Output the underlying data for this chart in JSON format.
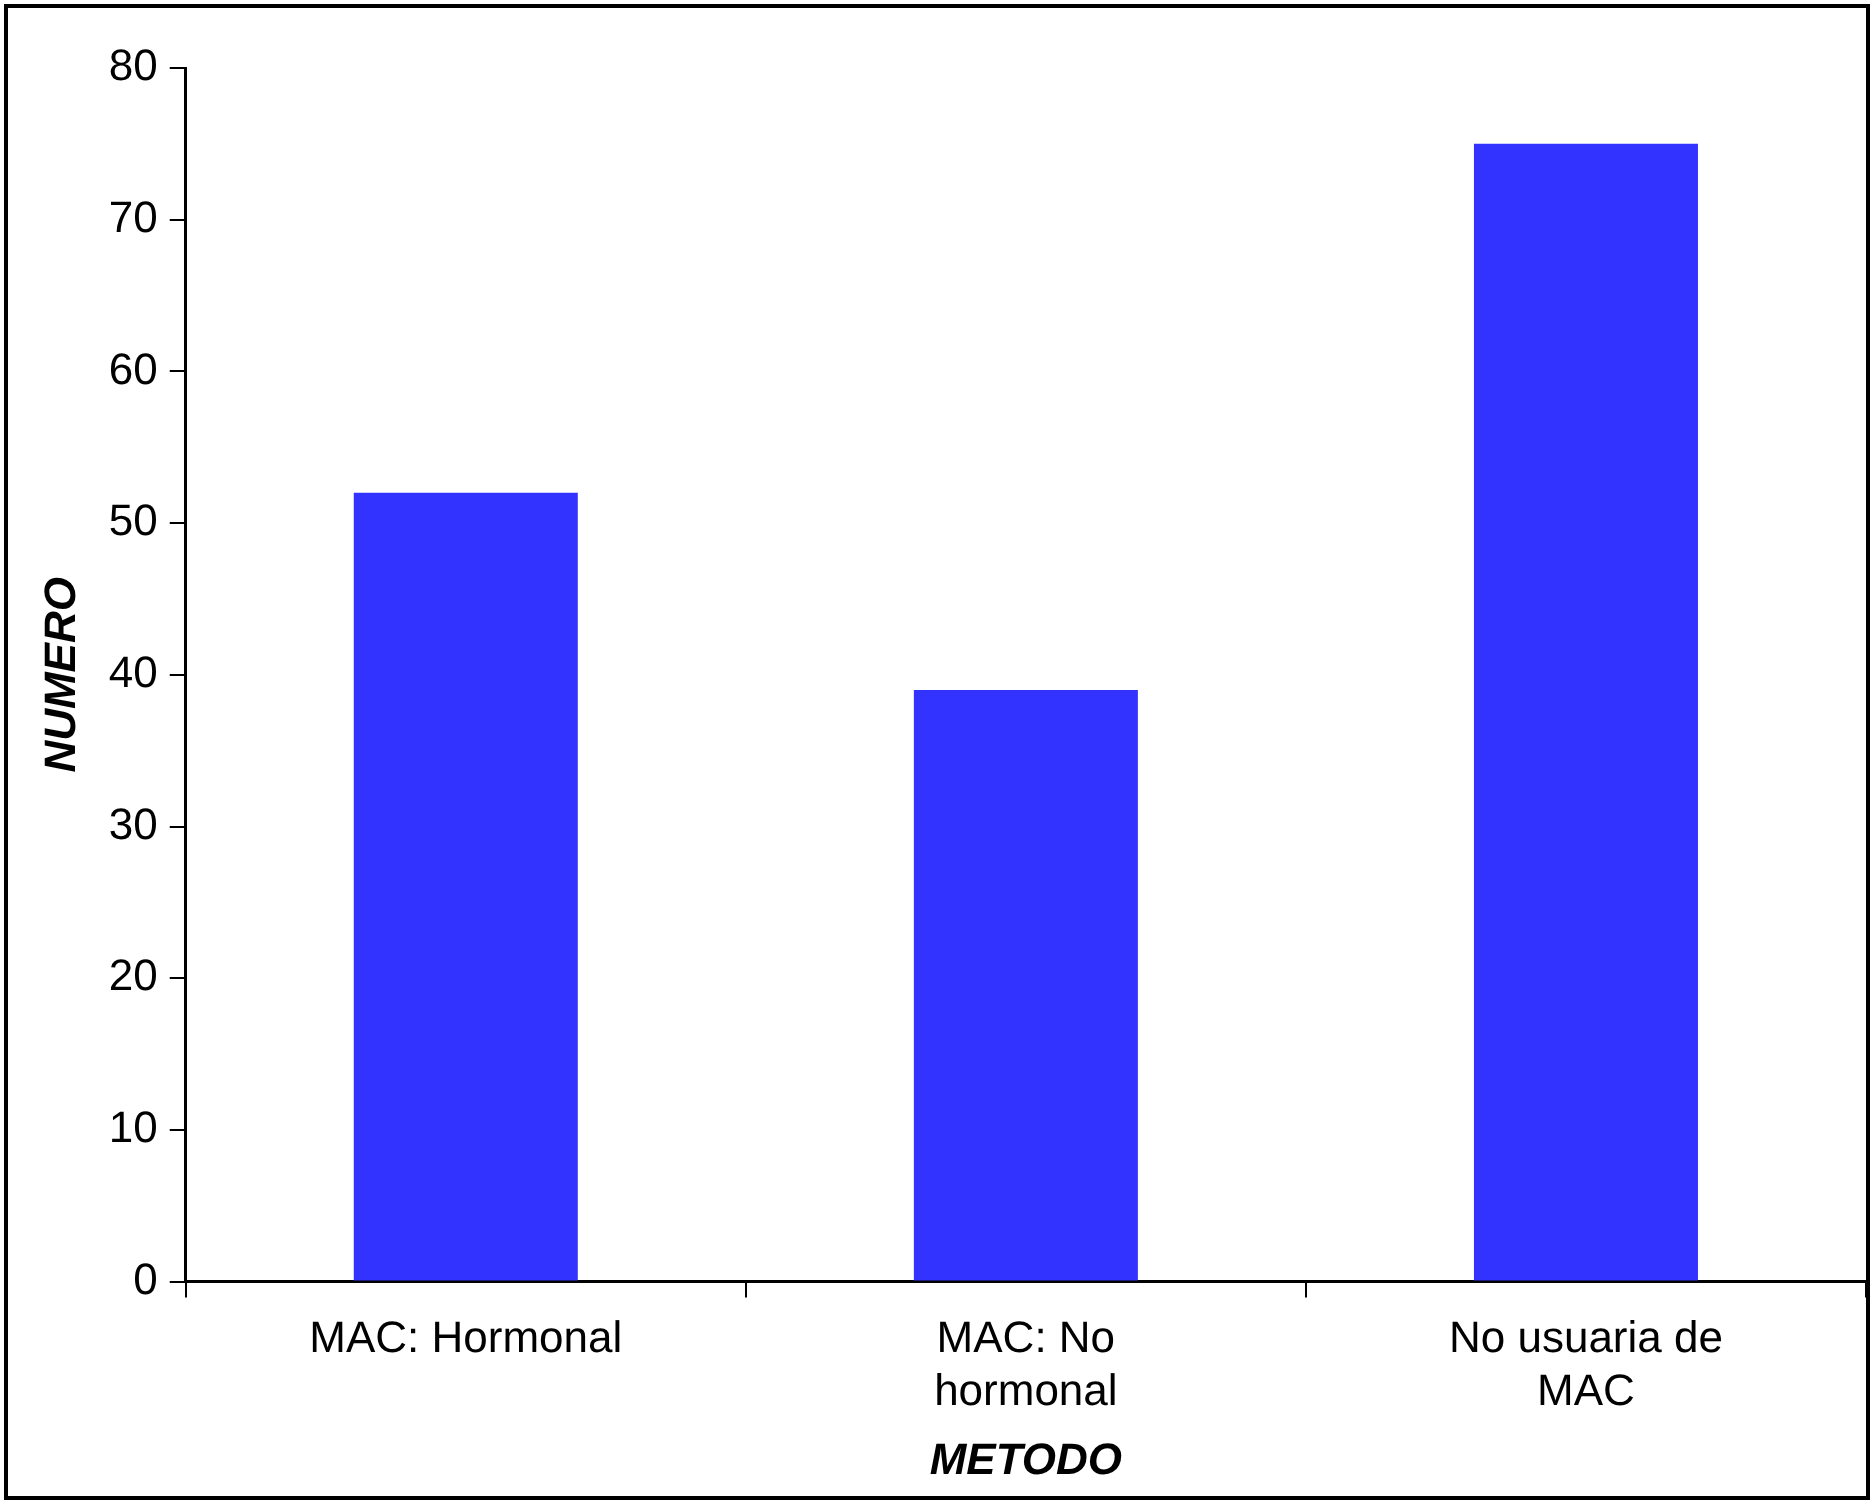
{
  "chart_data": {
    "type": "bar",
    "xlabel": "METODO",
    "ylabel": "NUMERO",
    "categories": [
      "MAC: Hormonal",
      "MAC: No hormonal",
      "No usuaria de MAC"
    ],
    "values": [
      52,
      39,
      75
    ],
    "color": "#3333ff",
    "ylim": [
      0,
      80
    ],
    "yticks": [
      0,
      10,
      20,
      30,
      40,
      50,
      60,
      70,
      80
    ],
    "grid": false,
    "legend": false
  }
}
